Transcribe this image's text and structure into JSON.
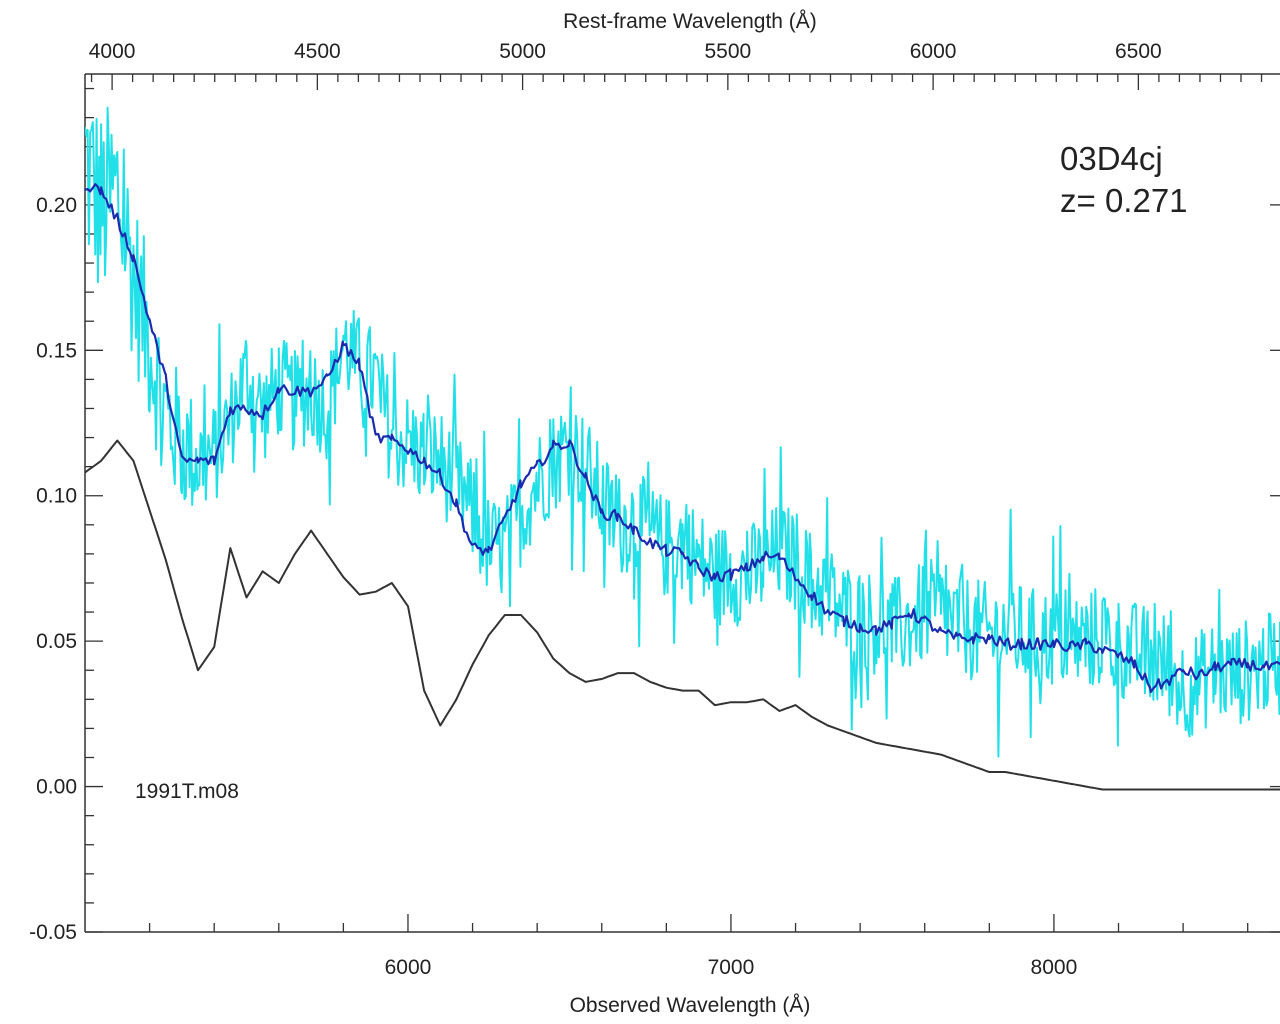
{
  "chart_data": {
    "type": "line",
    "title": "",
    "xlabel": "Observed Wavelength (Å)",
    "x2label": "Rest-frame Wavelength (Å)",
    "ylabel": "",
    "xlim": [
      5000,
      8700
    ],
    "x2lim": [
      3934,
      6845
    ],
    "ylim": [
      -0.05,
      0.245
    ],
    "x_ticks": [
      "6000",
      "7000",
      "8000"
    ],
    "x_tick_values": [
      6000,
      7000,
      8000
    ],
    "x2_ticks": [
      "4000",
      "4500",
      "5000",
      "5500",
      "6000",
      "6500"
    ],
    "x2_tick_values": [
      4000,
      4500,
      5000,
      5500,
      6000,
      6500
    ],
    "y_ticks": [
      "0.20",
      "0.15",
      "0.10",
      "0.05",
      "0.00",
      "-0.05"
    ],
    "y_tick_values": [
      0.2,
      0.15,
      0.1,
      0.05,
      0.0,
      -0.05
    ],
    "grid": false,
    "legend": "none",
    "annotations": {
      "object": "03D4cj",
      "redshift": "z= 0.271",
      "template": "1991T.m08"
    },
    "colors": {
      "observed": "#22e0e8",
      "smoothed": "#1a2bb0",
      "template": "#333333"
    },
    "series": [
      {
        "role": "observed-noisy",
        "x": [
          5000,
          5050,
          5100,
          5150,
          5200,
          5250,
          5300,
          5350,
          5400,
          5450,
          5500,
          5550,
          5600,
          5650,
          5700,
          5750,
          5800,
          5850,
          5900,
          5950,
          6000,
          6050,
          6100,
          6150,
          6200,
          6250,
          6300,
          6350,
          6400,
          6450,
          6500,
          6550,
          6600,
          6650,
          6700,
          6750,
          6800,
          6850,
          6900,
          6950,
          7000,
          7050,
          7100,
          7150,
          7200,
          7250,
          7300,
          7350,
          7400,
          7450,
          7500,
          7550,
          7600,
          7650,
          7700,
          7750,
          7800,
          7850,
          7900,
          7950,
          8000,
          8050,
          8100,
          8150,
          8200,
          8250,
          8300,
          8350,
          8400,
          8450,
          8500,
          8550,
          8600,
          8650,
          8700
        ],
        "y": [
          0.215,
          0.198,
          0.205,
          0.176,
          0.152,
          0.128,
          0.118,
          0.112,
          0.114,
          0.126,
          0.142,
          0.128,
          0.138,
          0.132,
          0.136,
          0.13,
          0.152,
          0.144,
          0.14,
          0.12,
          0.118,
          0.114,
          0.112,
          0.104,
          0.094,
          0.082,
          0.082,
          0.094,
          0.105,
          0.112,
          0.118,
          0.11,
          0.098,
          0.09,
          0.092,
          0.086,
          0.082,
          0.084,
          0.078,
          0.072,
          0.074,
          0.072,
          0.076,
          0.08,
          0.078,
          0.07,
          0.066,
          0.06,
          0.058,
          0.056,
          0.054,
          0.056,
          0.06,
          0.06,
          0.056,
          0.054,
          0.052,
          0.054,
          0.052,
          0.05,
          0.052,
          0.05,
          0.05,
          0.052,
          0.048,
          0.046,
          0.044,
          0.042,
          0.034,
          0.036,
          0.04,
          0.038,
          0.04,
          0.042,
          0.042
        ]
      },
      {
        "role": "observed-smoothed",
        "x": [
          5000,
          5050,
          5100,
          5150,
          5200,
          5250,
          5300,
          5350,
          5400,
          5450,
          5500,
          5550,
          5600,
          5650,
          5700,
          5750,
          5800,
          5850,
          5900,
          5950,
          6000,
          6050,
          6100,
          6150,
          6200,
          6250,
          6300,
          6350,
          6400,
          6450,
          6500,
          6550,
          6600,
          6650,
          6700,
          6750,
          6800,
          6850,
          6900,
          6950,
          7000,
          7050,
          7100,
          7150,
          7200,
          7250,
          7300,
          7350,
          7400,
          7450,
          7500,
          7550,
          7600,
          7650,
          7700,
          7750,
          7800,
          7850,
          7900,
          7950,
          8000,
          8050,
          8100,
          8150,
          8200,
          8250,
          8300,
          8350,
          8400,
          8450,
          8500,
          8550,
          8600,
          8650,
          8700
        ],
        "y": [
          0.207,
          0.205,
          0.195,
          0.182,
          0.16,
          0.14,
          0.112,
          0.112,
          0.112,
          0.13,
          0.13,
          0.128,
          0.137,
          0.136,
          0.136,
          0.14,
          0.152,
          0.145,
          0.12,
          0.119,
          0.116,
          0.112,
          0.107,
          0.097,
          0.082,
          0.081,
          0.092,
          0.104,
          0.11,
          0.117,
          0.118,
          0.106,
          0.094,
          0.093,
          0.088,
          0.084,
          0.081,
          0.08,
          0.075,
          0.072,
          0.073,
          0.075,
          0.079,
          0.079,
          0.072,
          0.066,
          0.06,
          0.057,
          0.055,
          0.054,
          0.056,
          0.06,
          0.057,
          0.053,
          0.051,
          0.051,
          0.051,
          0.049,
          0.049,
          0.049,
          0.049,
          0.048,
          0.049,
          0.047,
          0.045,
          0.042,
          0.034,
          0.036,
          0.04,
          0.038,
          0.041,
          0.042,
          0.042,
          0.041,
          0.041
        ]
      },
      {
        "role": "template",
        "x": [
          5000,
          5050,
          5100,
          5150,
          5200,
          5250,
          5300,
          5350,
          5400,
          5450,
          5500,
          5550,
          5600,
          5650,
          5700,
          5750,
          5800,
          5850,
          5900,
          5950,
          6000,
          6050,
          6100,
          6150,
          6200,
          6250,
          6300,
          6350,
          6400,
          6450,
          6500,
          6550,
          6600,
          6650,
          6700,
          6750,
          6800,
          6850,
          6900,
          6950,
          7000,
          7050,
          7100,
          7150,
          7200,
          7250,
          7300,
          7350,
          7400,
          7450,
          7500,
          7550,
          7600,
          7650,
          7700,
          7750,
          7800,
          7850,
          7900,
          7950,
          8000,
          8050,
          8100,
          8150,
          8200,
          8250,
          8300,
          8350,
          8400,
          8450,
          8500,
          8550,
          8600,
          8650,
          8700
        ],
        "y": [
          0.108,
          0.112,
          0.119,
          0.112,
          0.095,
          0.078,
          0.058,
          0.04,
          0.048,
          0.082,
          0.065,
          0.074,
          0.07,
          0.08,
          0.088,
          0.08,
          0.072,
          0.066,
          0.067,
          0.07,
          0.062,
          0.033,
          0.021,
          0.03,
          0.042,
          0.052,
          0.059,
          0.059,
          0.053,
          0.044,
          0.039,
          0.036,
          0.037,
          0.039,
          0.039,
          0.036,
          0.034,
          0.033,
          0.033,
          0.028,
          0.029,
          0.029,
          0.03,
          0.026,
          0.028,
          0.024,
          0.021,
          0.019,
          0.017,
          0.015,
          0.014,
          0.013,
          0.012,
          0.011,
          0.009,
          0.007,
          0.005,
          0.005,
          0.004,
          0.003,
          0.002,
          0.001,
          0.0,
          -0.001,
          -0.001,
          -0.001,
          -0.001,
          -0.001,
          -0.001,
          -0.001,
          -0.001,
          -0.001,
          -0.001,
          -0.001,
          -0.001
        ]
      }
    ]
  }
}
